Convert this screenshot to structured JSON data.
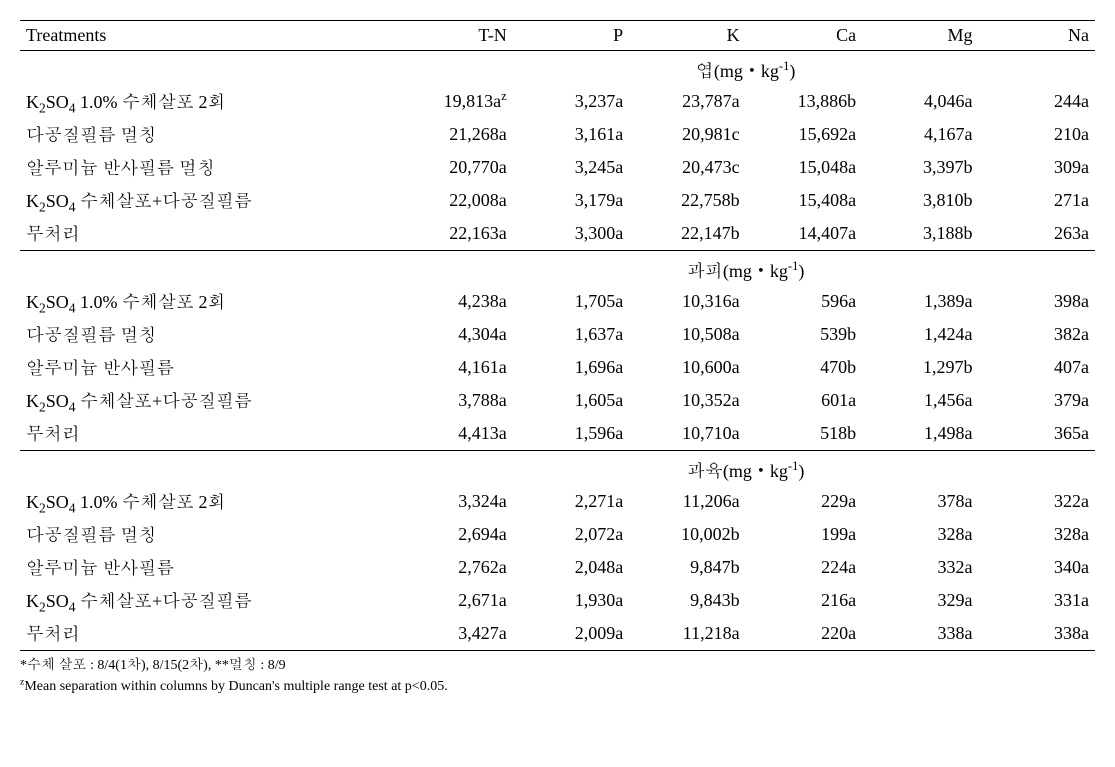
{
  "headers": {
    "treatments": "Treatments",
    "tn": "T-N",
    "p": "P",
    "k": "K",
    "ca": "Ca",
    "mg": "Mg",
    "na": "Na"
  },
  "treatments": {
    "t1_pre": "K",
    "t1_sub": "2",
    "t1_mid": "SO",
    "t1_sub2": "4",
    "t1_post": " 1.0% 수체살포 2회",
    "t2": "다공질필름 멀칭",
    "t3": "알루미늄 반사필름 멀칭",
    "t3b": "알루미늄 반사필름",
    "t4_pre": "K",
    "t4_sub": "2",
    "t4_mid": "SO",
    "t4_sub2": "4",
    "t4_post": " 수체살포+다공질필름",
    "t5": "무처리"
  },
  "sections": {
    "s1_label": "엽(mg・kg",
    "s1_sup": "-1",
    "s1_close": ")",
    "s2_label": "과피(mg・kg",
    "s2_sup": "-1",
    "s2_close": ")",
    "s3_label": "과육(mg・kg",
    "s3_sup": "-1",
    "s3_close": ")"
  },
  "s1": {
    "r1": {
      "tn_v": "19,813a",
      "tn_sup": "z",
      "p": "3,237a",
      "k": "23,787a",
      "ca": "13,886b",
      "mg": "4,046a",
      "na": "244a"
    },
    "r2": {
      "tn": "21,268a",
      "p": "3,161a",
      "k": "20,981c",
      "ca": "15,692a",
      "mg": "4,167a",
      "na": "210a"
    },
    "r3": {
      "tn": "20,770a",
      "p": "3,245a",
      "k": "20,473c",
      "ca": "15,048a",
      "mg": "3,397b",
      "na": "309a"
    },
    "r4": {
      "tn": "22,008a",
      "p": "3,179a",
      "k": "22,758b",
      "ca": "15,408a",
      "mg": "3,810b",
      "na": "271a"
    },
    "r5": {
      "tn": "22,163a",
      "p": "3,300a",
      "k": "22,147b",
      "ca": "14,407a",
      "mg": "3,188b",
      "na": "263a"
    }
  },
  "s2": {
    "r1": {
      "tn": "4,238a",
      "p": "1,705a",
      "k": "10,316a",
      "ca": "596a",
      "mg": "1,389a",
      "na": "398a"
    },
    "r2": {
      "tn": "4,304a",
      "p": "1,637a",
      "k": "10,508a",
      "ca": "539b",
      "mg": "1,424a",
      "na": "382a"
    },
    "r3": {
      "tn": "4,161a",
      "p": "1,696a",
      "k": "10,600a",
      "ca": "470b",
      "mg": "1,297b",
      "na": "407a"
    },
    "r4": {
      "tn": "3,788a",
      "p": "1,605a",
      "k": "10,352a",
      "ca": "601a",
      "mg": "1,456a",
      "na": "379a"
    },
    "r5": {
      "tn": "4,413a",
      "p": "1,596a",
      "k": "10,710a",
      "ca": "518b",
      "mg": "1,498a",
      "na": "365a"
    }
  },
  "s3": {
    "r1": {
      "tn": "3,324a",
      "p": "2,271a",
      "k": "11,206a",
      "ca": "229a",
      "mg": "378a",
      "na": "322a"
    },
    "r2": {
      "tn": "2,694a",
      "p": "2,072a",
      "k": "10,002b",
      "ca": "199a",
      "mg": "328a",
      "na": "328a"
    },
    "r3": {
      "tn": "2,762a",
      "p": "2,048a",
      "k": "9,847b",
      "ca": "224a",
      "mg": "332a",
      "na": "340a"
    },
    "r4": {
      "tn": "2,671a",
      "p": "1,930a",
      "k": "9,843b",
      "ca": "216a",
      "mg": "329a",
      "na": "331a"
    },
    "r5": {
      "tn": "3,427a",
      "p": "2,009a",
      "k": "11,218a",
      "ca": "220a",
      "mg": "338a",
      "na": "338a"
    }
  },
  "footnotes": {
    "f1": "*수체 살포 : 8/4(1차), 8/15(2차), **멀칭 : 8/9",
    "f2_sup": "z",
    "f2": "Mean separation within columns by Duncan's multiple range test at p<0.05."
  }
}
